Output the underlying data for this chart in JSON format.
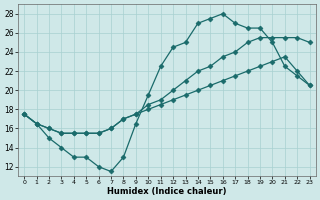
{
  "xlabel": "Humidex (Indice chaleur)",
  "bg_color": "#cfe8e8",
  "grid_color": "#a8d0d0",
  "line_color": "#1a6b6b",
  "xlim": [
    -0.5,
    23.5
  ],
  "ylim": [
    11,
    29
  ],
  "xticks": [
    0,
    1,
    2,
    3,
    4,
    5,
    6,
    7,
    8,
    9,
    10,
    11,
    12,
    13,
    14,
    15,
    16,
    17,
    18,
    19,
    20,
    21,
    22,
    23
  ],
  "yticks": [
    12,
    14,
    16,
    18,
    20,
    22,
    24,
    26,
    28
  ],
  "line1_x": [
    0,
    1,
    2,
    3,
    4,
    5,
    6,
    7,
    8,
    9,
    10,
    11,
    12,
    13,
    14,
    15,
    16,
    17,
    18,
    19,
    20,
    21,
    22,
    23
  ],
  "line1_y": [
    17.5,
    16.5,
    15.0,
    14.0,
    13.0,
    13.0,
    12.0,
    11.5,
    13.0,
    16.5,
    19.5,
    22.5,
    24.5,
    25.0,
    27.0,
    27.5,
    28.0,
    27.0,
    26.5,
    26.5,
    25.0,
    22.5,
    21.5,
    20.5
  ],
  "line2_x": [
    0,
    1,
    2,
    3,
    4,
    5,
    6,
    7,
    8,
    9,
    10,
    11,
    12,
    13,
    14,
    15,
    16,
    17,
    18,
    19,
    20,
    21,
    22,
    23
  ],
  "line2_y": [
    17.5,
    16.5,
    16.0,
    15.5,
    15.5,
    15.5,
    15.5,
    16.0,
    17.0,
    17.5,
    18.5,
    19.0,
    20.0,
    21.0,
    22.0,
    22.5,
    23.5,
    24.0,
    25.0,
    25.5,
    25.5,
    25.5,
    25.5,
    25.0
  ],
  "line3_x": [
    0,
    1,
    2,
    3,
    4,
    5,
    6,
    7,
    8,
    9,
    10,
    11,
    12,
    13,
    14,
    15,
    16,
    17,
    18,
    19,
    20,
    21,
    22,
    23
  ],
  "line3_y": [
    17.5,
    16.5,
    16.0,
    15.5,
    15.5,
    15.5,
    15.5,
    16.0,
    17.0,
    17.5,
    18.0,
    18.5,
    19.0,
    19.5,
    20.0,
    20.5,
    21.0,
    21.5,
    22.0,
    22.5,
    23.0,
    23.5,
    22.0,
    20.5
  ]
}
